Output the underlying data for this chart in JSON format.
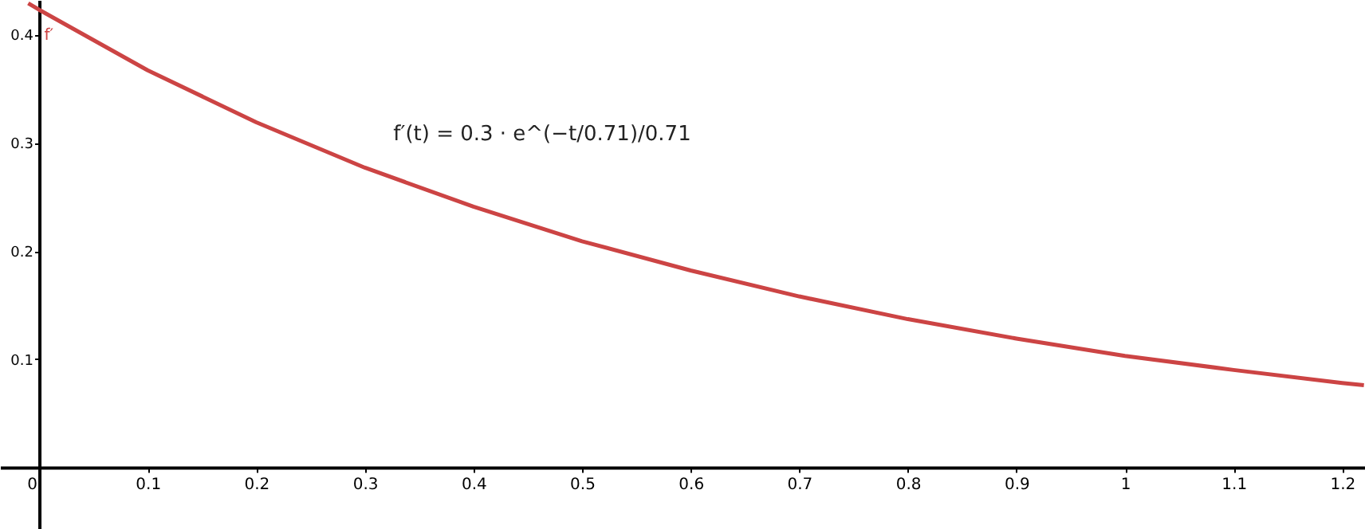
{
  "chart_data": {
    "type": "line",
    "x": [
      -0.01,
      0,
      0.1,
      0.2,
      0.3,
      0.4,
      0.5,
      0.6,
      0.7,
      0.8,
      0.9,
      1.0,
      1.1,
      1.2,
      1.22
    ],
    "series": [
      {
        "name": "f′",
        "color": "#cc4444",
        "values": [
          0.429,
          0.423,
          0.367,
          0.319,
          0.277,
          0.241,
          0.209,
          0.182,
          0.158,
          0.137,
          0.119,
          0.103,
          0.09,
          0.078,
          0.076
        ]
      }
    ],
    "xlim": [
      -0.036,
      1.221
    ],
    "ylim": [
      -0.057,
      0.432
    ],
    "xticks": [
      0,
      0.1,
      0.2,
      0.3,
      0.4,
      0.5,
      0.6,
      0.7,
      0.8,
      0.9,
      1,
      1.1,
      1.2
    ],
    "yticks": [
      0.1,
      0.2,
      0.3,
      0.4
    ],
    "annotations": [
      "f′(t) = 0.3 · e^(−t/0.71)/0.71"
    ],
    "grid": false,
    "line_style": "solid",
    "marker": "none"
  }
}
